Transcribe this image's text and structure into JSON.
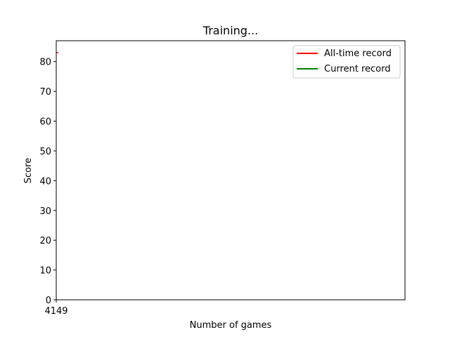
{
  "chart_data": {
    "type": "line",
    "title": "Training...",
    "xlabel": "Number of games",
    "ylabel": "Score",
    "xlim": [
      4149,
      4150
    ],
    "ylim": [
      0,
      87
    ],
    "x_ticks": [
      4149
    ],
    "x_tick_labels": [
      "4149"
    ],
    "y_ticks": [
      0,
      10,
      20,
      30,
      40,
      50,
      60,
      70,
      80
    ],
    "y_tick_labels": [
      "0",
      "10",
      "20",
      "30",
      "40",
      "50",
      "60",
      "70",
      "80"
    ],
    "grid": false,
    "legend_position": "top-right",
    "series": [
      {
        "name": "All-time record",
        "color": "#ff0000",
        "x": [
          4149
        ],
        "values": [
          83
        ]
      },
      {
        "name": "Current record",
        "color": "#008000",
        "x": [],
        "values": []
      }
    ]
  }
}
